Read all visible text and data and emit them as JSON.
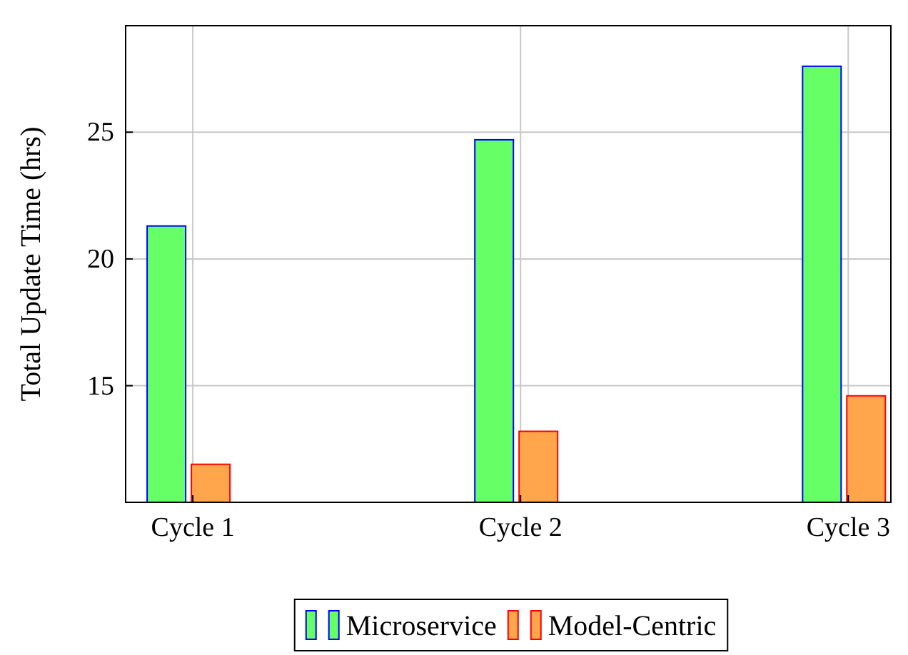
{
  "chart_data": {
    "type": "bar",
    "ylabel": "Total Update Time (hrs)",
    "categories": [
      "Cycle 1",
      "Cycle 2",
      "Cycle 3"
    ],
    "series": [
      {
        "name": "Microservice",
        "color": "#66ff66",
        "values": [
          21.3,
          24.7,
          27.6
        ]
      },
      {
        "name": "Model-Centric",
        "color": "#ffa64d",
        "values": [
          11.9,
          13.2,
          14.6
        ]
      }
    ],
    "ylim": [
      10.4,
      29.2
    ],
    "yticks": [
      15,
      20,
      25
    ],
    "grid": true,
    "legend": "bottom"
  }
}
